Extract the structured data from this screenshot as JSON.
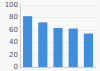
{
  "chart_data": {
    "type": "bar",
    "categories": [
      null,
      null,
      null,
      null,
      null
    ],
    "values": [
      82,
      72,
      63,
      62,
      54
    ],
    "color": "#3d8edf",
    "ylim": [
      0,
      100
    ],
    "yticks": [
      0,
      20,
      40,
      60,
      80,
      100
    ],
    "grid": true,
    "tick_labels": "y"
  }
}
